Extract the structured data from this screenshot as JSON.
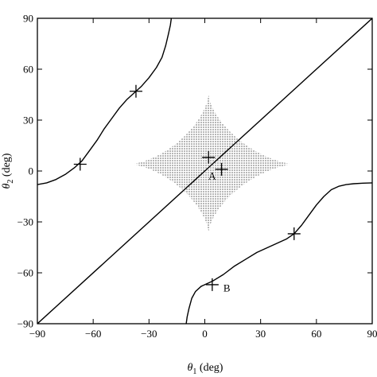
{
  "chart_data": {
    "type": "line",
    "xlabel_sym": "θ",
    "xlabel_sub": "1",
    "xlabel_unit": " (deg)",
    "ylabel_sym": "θ",
    "ylabel_sub": "2",
    "ylabel_unit": " (deg)",
    "xlim": [
      -90,
      90
    ],
    "ylim": [
      -90,
      90
    ],
    "xticks": [
      -90,
      -60,
      -30,
      0,
      30,
      60,
      90
    ],
    "yticks": [
      -90,
      -60,
      -30,
      0,
      30,
      60,
      90
    ],
    "xtick_labels": [
      "−90",
      "−60",
      "−30",
      "0",
      "30",
      "60",
      "90"
    ],
    "ytick_labels": [
      "−90",
      "−60",
      "−30",
      "0",
      "30",
      "60",
      "90"
    ],
    "grid": false,
    "series": [
      {
        "id": "curve-upper-left",
        "points": [
          [
            -90,
            -8
          ],
          [
            -85,
            -7
          ],
          [
            -80,
            -5
          ],
          [
            -75,
            -2
          ],
          [
            -70,
            2
          ],
          [
            -66,
            6
          ],
          [
            -62,
            12
          ],
          [
            -58,
            18
          ],
          [
            -54,
            25
          ],
          [
            -50,
            31
          ],
          [
            -46,
            37
          ],
          [
            -42,
            42
          ],
          [
            -38,
            46
          ],
          [
            -34,
            50
          ],
          [
            -30,
            55
          ],
          [
            -26,
            61
          ],
          [
            -23,
            67
          ],
          [
            -21,
            74
          ],
          [
            -19.5,
            81
          ],
          [
            -18.5,
            86
          ],
          [
            -18,
            90
          ]
        ]
      },
      {
        "id": "curve-lower-right",
        "points": [
          [
            -10,
            -90
          ],
          [
            -9.5,
            -86
          ],
          [
            -8.5,
            -81
          ],
          [
            -7,
            -75
          ],
          [
            -5,
            -71
          ],
          [
            -2,
            -68
          ],
          [
            4,
            -65
          ],
          [
            10,
            -61
          ],
          [
            16,
            -56
          ],
          [
            22,
            -52
          ],
          [
            28,
            -48
          ],
          [
            34,
            -45
          ],
          [
            40,
            -42
          ],
          [
            44,
            -40
          ],
          [
            48,
            -37
          ],
          [
            52,
            -32
          ],
          [
            56,
            -26
          ],
          [
            60,
            -20
          ],
          [
            64,
            -15
          ],
          [
            68,
            -11
          ],
          [
            72,
            -9
          ],
          [
            76,
            -8
          ],
          [
            80,
            -7.5
          ],
          [
            85,
            -7.2
          ],
          [
            90,
            -7
          ]
        ]
      },
      {
        "id": "diagonal-line",
        "points": [
          [
            -90,
            -90
          ],
          [
            90,
            90
          ]
        ]
      }
    ],
    "markers": [
      {
        "id": "marker-upper-1",
        "x": -37,
        "y": 47
      },
      {
        "id": "marker-upper-2",
        "x": -67,
        "y": 4
      },
      {
        "id": "marker-lower-1",
        "x": 48,
        "y": -37
      },
      {
        "id": "marker-B",
        "x": 4,
        "y": -67
      },
      {
        "id": "marker-A1",
        "x": 2,
        "y": 8
      },
      {
        "id": "marker-A2",
        "x": 9,
        "y": 1
      }
    ],
    "region": {
      "type": "astroid",
      "center": [
        2,
        4
      ],
      "x_extent": [
        -40,
        48
      ],
      "y_extent": [
        -36,
        45
      ]
    },
    "annotations": [
      {
        "text": "A",
        "x": 2,
        "y": -5
      },
      {
        "text": "B",
        "x": 10,
        "y": -71
      }
    ]
  }
}
